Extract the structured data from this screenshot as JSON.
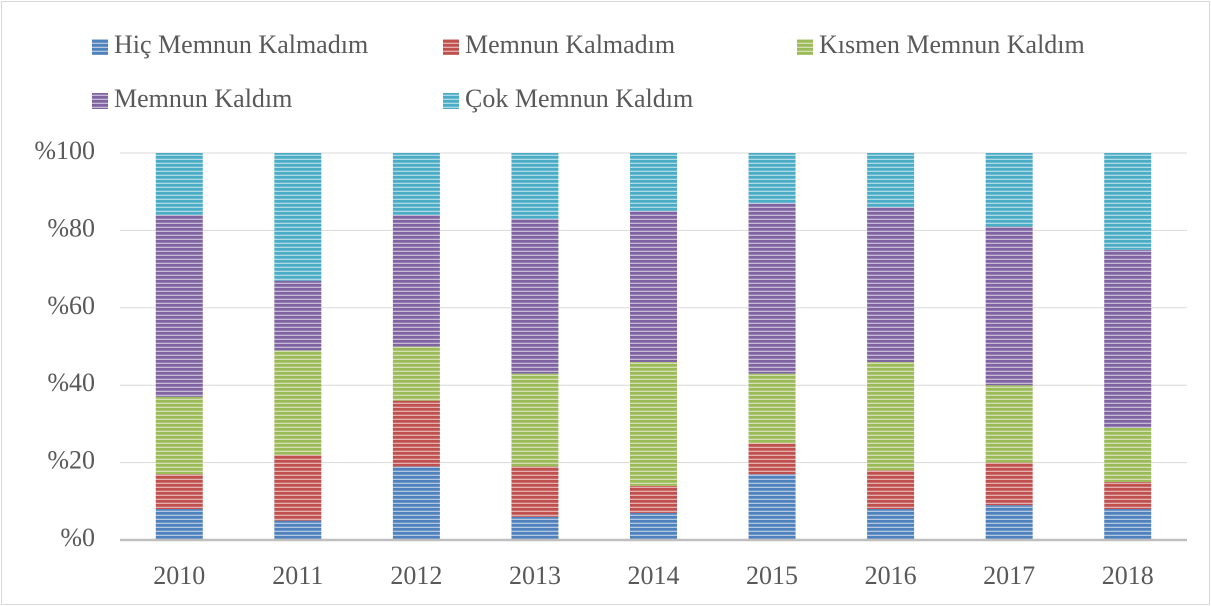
{
  "chart_data": {
    "type": "stacked_bar",
    "categories": [
      "2010",
      "2011",
      "2012",
      "2013",
      "2014",
      "2015",
      "2016",
      "2017",
      "2018"
    ],
    "series": [
      {
        "name": "Hiç Memnun Kalmadım",
        "color": "#4f81bd",
        "values": [
          8,
          5,
          19,
          6,
          7,
          17,
          8,
          9,
          8
        ]
      },
      {
        "name": "Memnun Kalmadım",
        "color": "#c0504d",
        "values": [
          9,
          17,
          17,
          13,
          7,
          8,
          10,
          11,
          7
        ]
      },
      {
        "name": "Kısmen Memnun Kaldım",
        "color": "#9bbb59",
        "values": [
          20,
          27,
          14,
          24,
          32,
          18,
          28,
          20,
          14
        ]
      },
      {
        "name": "Memnun Kaldım",
        "color": "#8064a2",
        "values": [
          47,
          18,
          34,
          40,
          39,
          44,
          40,
          41,
          46
        ]
      },
      {
        "name": "Çok Memnun Kaldım",
        "color": "#4bacc6",
        "values": [
          16,
          33,
          16,
          17,
          15,
          13,
          14,
          19,
          25
        ]
      }
    ],
    "ylim": [
      0,
      100
    ],
    "yticks": [
      {
        "value": 0,
        "label": "%0"
      },
      {
        "value": 20,
        "label": "%20"
      },
      {
        "value": 40,
        "label": "%40"
      },
      {
        "value": 60,
        "label": "%60"
      },
      {
        "value": 80,
        "label": "%80"
      },
      {
        "value": 100,
        "label": "%100"
      }
    ],
    "grid": true,
    "legend": "top"
  }
}
